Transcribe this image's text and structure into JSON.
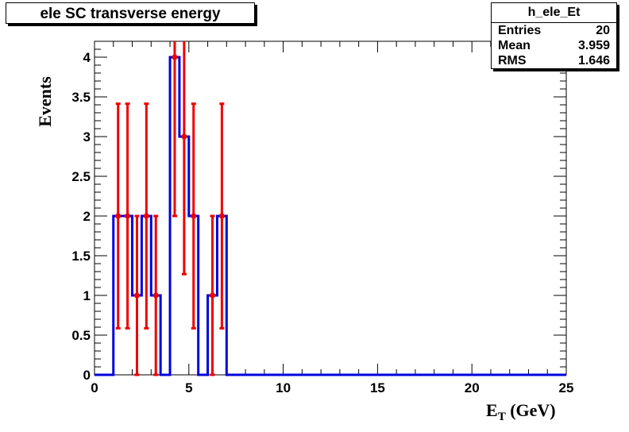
{
  "title": "ele SC transverse energy",
  "stats": {
    "name": "h_ele_Et",
    "rows": [
      {
        "label": "Entries",
        "value": "20"
      },
      {
        "label": "Mean",
        "value": "3.959"
      },
      {
        "label": "RMS",
        "value": "1.646"
      }
    ]
  },
  "chart_data": {
    "type": "histogram",
    "title": "ele SC transverse energy",
    "xlabel_main": "E",
    "xlabel_sub": "T",
    "xlabel_rest": " (GeV)",
    "ylabel": "Events",
    "xlim": [
      0,
      25
    ],
    "ylim": [
      0,
      4.2
    ],
    "xticks": [
      0,
      5,
      10,
      15,
      20,
      25
    ],
    "xtick_labels": [
      "0",
      "5",
      "10",
      "15",
      "20",
      "25"
    ],
    "yticks": [
      0,
      0.5,
      1,
      1.5,
      2,
      2.5,
      3,
      3.5,
      4
    ],
    "ytick_labels": [
      "0",
      "0.5",
      "1",
      "1.5",
      "2",
      "2.5",
      "3",
      "3.5",
      "4"
    ],
    "bin_width": 0.5,
    "bin_start": 1.0,
    "bin_contents": [
      2,
      2,
      1,
      2,
      1,
      0,
      4,
      3,
      2,
      0,
      1,
      2
    ],
    "line_color": "#0000dd",
    "marker_color": "#ee0000",
    "grid": false
  }
}
